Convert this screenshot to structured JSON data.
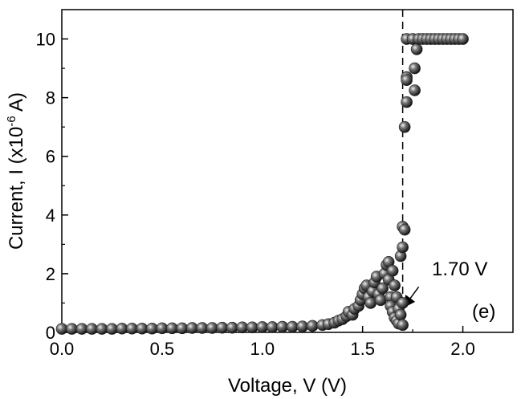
{
  "chart_data": {
    "type": "scatter",
    "xlim": [
      0.0,
      2.25
    ],
    "ylim": [
      0,
      11
    ],
    "x_ticks": [
      0.0,
      0.5,
      1.0,
      1.5,
      2.0
    ],
    "y_ticks": [
      0,
      2,
      4,
      6,
      8,
      10
    ],
    "x_tick_labels": [
      "0.0",
      "0.5",
      "1.0",
      "1.5",
      "2.0"
    ],
    "y_tick_labels": [
      "0",
      "2",
      "4",
      "6",
      "8",
      "10"
    ],
    "xlabel": "Voltage, V (V)",
    "ylabel_parts": {
      "main": "Current, I (x10",
      "sup": "-6",
      "end": " A)"
    },
    "grid": false,
    "marker_color": "#222222",
    "threshold": {
      "x": 1.7,
      "label": "1.70 V",
      "arrow_from": [
        1.78,
        1.55
      ],
      "arrow_to": [
        1.71,
        0.9
      ]
    },
    "panel_label": "(e)",
    "series": [
      {
        "points": [
          [
            0.0,
            0.12
          ],
          [
            0.05,
            0.12
          ],
          [
            0.1,
            0.12
          ],
          [
            0.15,
            0.12
          ],
          [
            0.2,
            0.12
          ],
          [
            0.25,
            0.12
          ],
          [
            0.3,
            0.13
          ],
          [
            0.35,
            0.13
          ],
          [
            0.4,
            0.13
          ],
          [
            0.45,
            0.13
          ],
          [
            0.5,
            0.14
          ],
          [
            0.55,
            0.14
          ],
          [
            0.6,
            0.14
          ],
          [
            0.65,
            0.15
          ],
          [
            0.7,
            0.15
          ],
          [
            0.75,
            0.15
          ],
          [
            0.8,
            0.16
          ],
          [
            0.85,
            0.16
          ],
          [
            0.9,
            0.17
          ],
          [
            0.95,
            0.17
          ],
          [
            1.0,
            0.18
          ],
          [
            1.05,
            0.18
          ],
          [
            1.1,
            0.19
          ],
          [
            1.15,
            0.19
          ],
          [
            1.2,
            0.2
          ],
          [
            1.25,
            0.22
          ],
          [
            1.3,
            0.25
          ],
          [
            1.33,
            0.28
          ],
          [
            1.36,
            0.33
          ],
          [
            1.38,
            0.4
          ],
          [
            1.4,
            0.45
          ],
          [
            1.42,
            0.55
          ],
          [
            1.43,
            0.7
          ],
          [
            1.45,
            0.6
          ],
          [
            1.46,
            0.8
          ],
          [
            1.48,
            0.9
          ],
          [
            1.49,
            1.1
          ],
          [
            1.5,
            1.3
          ],
          [
            1.51,
            1.5
          ],
          [
            1.52,
            1.6
          ],
          [
            1.53,
            1.2
          ],
          [
            1.54,
            1.0
          ],
          [
            1.55,
            1.4
          ],
          [
            1.56,
            1.7
          ],
          [
            1.57,
            1.9
          ],
          [
            1.58,
            1.3
          ],
          [
            1.59,
            1.1
          ],
          [
            1.6,
            1.5
          ],
          [
            1.61,
            2.0
          ],
          [
            1.62,
            2.3
          ],
          [
            1.63,
            2.4
          ],
          [
            1.63,
            1.8
          ],
          [
            1.64,
            1.2
          ],
          [
            1.64,
            0.9
          ],
          [
            1.65,
            2.1
          ],
          [
            1.65,
            0.7
          ],
          [
            1.66,
            1.6
          ],
          [
            1.66,
            0.5
          ],
          [
            1.67,
            1.2
          ],
          [
            1.67,
            0.4
          ],
          [
            1.68,
            0.8
          ],
          [
            1.68,
            0.3
          ],
          [
            1.69,
            2.6
          ],
          [
            1.69,
            0.6
          ],
          [
            1.7,
            2.9
          ],
          [
            1.7,
            3.6
          ],
          [
            1.7,
            0.25
          ],
          [
            1.7,
            1.0
          ],
          [
            1.71,
            3.5
          ],
          [
            1.71,
            7.0
          ],
          [
            1.72,
            7.85
          ],
          [
            1.72,
            8.7
          ],
          [
            1.72,
            8.6
          ],
          [
            1.72,
            10.0
          ],
          [
            1.75,
            10.0
          ],
          [
            1.76,
            8.25
          ],
          [
            1.76,
            9.0
          ],
          [
            1.77,
            9.65
          ],
          [
            1.78,
            10.0
          ],
          [
            1.8,
            10.0
          ],
          [
            1.82,
            10.0
          ],
          [
            1.84,
            10.0
          ],
          [
            1.86,
            10.0
          ],
          [
            1.88,
            10.0
          ],
          [
            1.9,
            10.0
          ],
          [
            1.92,
            10.0
          ],
          [
            1.94,
            10.0
          ],
          [
            1.96,
            10.0
          ],
          [
            1.98,
            10.0
          ],
          [
            2.0,
            10.0
          ]
        ]
      }
    ]
  }
}
